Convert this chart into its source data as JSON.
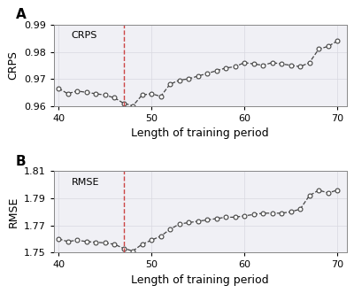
{
  "crps_x": [
    40,
    41,
    42,
    43,
    44,
    45,
    46,
    47,
    48,
    49,
    50,
    51,
    52,
    53,
    54,
    55,
    56,
    57,
    58,
    59,
    60,
    61,
    62,
    63,
    64,
    65,
    66,
    67,
    68,
    69,
    70
  ],
  "crps_y": [
    0.9665,
    0.9645,
    0.9655,
    0.965,
    0.9645,
    0.964,
    0.963,
    0.961,
    0.96,
    0.964,
    0.9645,
    0.9635,
    0.968,
    0.9695,
    0.97,
    0.971,
    0.972,
    0.973,
    0.974,
    0.9745,
    0.976,
    0.9755,
    0.975,
    0.976,
    0.9755,
    0.975,
    0.9745,
    0.976,
    0.981,
    0.982,
    0.984
  ],
  "rmse_x": [
    40,
    41,
    42,
    43,
    44,
    45,
    46,
    47,
    48,
    49,
    50,
    51,
    52,
    53,
    54,
    55,
    56,
    57,
    58,
    59,
    60,
    61,
    62,
    63,
    64,
    65,
    66,
    67,
    68,
    69,
    70
  ],
  "rmse_y": [
    1.76,
    1.758,
    1.759,
    1.758,
    1.7575,
    1.757,
    1.756,
    1.753,
    1.751,
    1.756,
    1.759,
    1.762,
    1.767,
    1.771,
    1.772,
    1.773,
    1.774,
    1.775,
    1.776,
    1.776,
    1.777,
    1.778,
    1.779,
    1.779,
    1.779,
    1.78,
    1.782,
    1.792,
    1.796,
    1.794,
    1.796
  ],
  "vline_x": 47,
  "crps_ylim": [
    0.96,
    0.99
  ],
  "crps_yticks": [
    0.96,
    0.97,
    0.98,
    0.99
  ],
  "rmse_ylim": [
    1.75,
    1.81
  ],
  "rmse_yticks": [
    1.75,
    1.77,
    1.79,
    1.81
  ],
  "xlim": [
    39.5,
    71
  ],
  "xticks": [
    40,
    50,
    60,
    70
  ],
  "xlabel": "Length of training period",
  "crps_ylabel": "CRPS",
  "rmse_ylabel": "RMSE",
  "label_A": "A",
  "label_B": "B",
  "crps_label": "CRPS",
  "rmse_label": "RMSE",
  "line_color": "#444444",
  "marker_facecolor": "white",
  "marker_edgecolor": "#444444",
  "vline_color": "#cc4444",
  "bg_color": "#f0f0f5",
  "grid_color": "#d8d8e0",
  "spine_color": "#888888",
  "marker_size": 3.5,
  "linewidth": 0.9,
  "font_size": 9,
  "label_fontsize": 11
}
